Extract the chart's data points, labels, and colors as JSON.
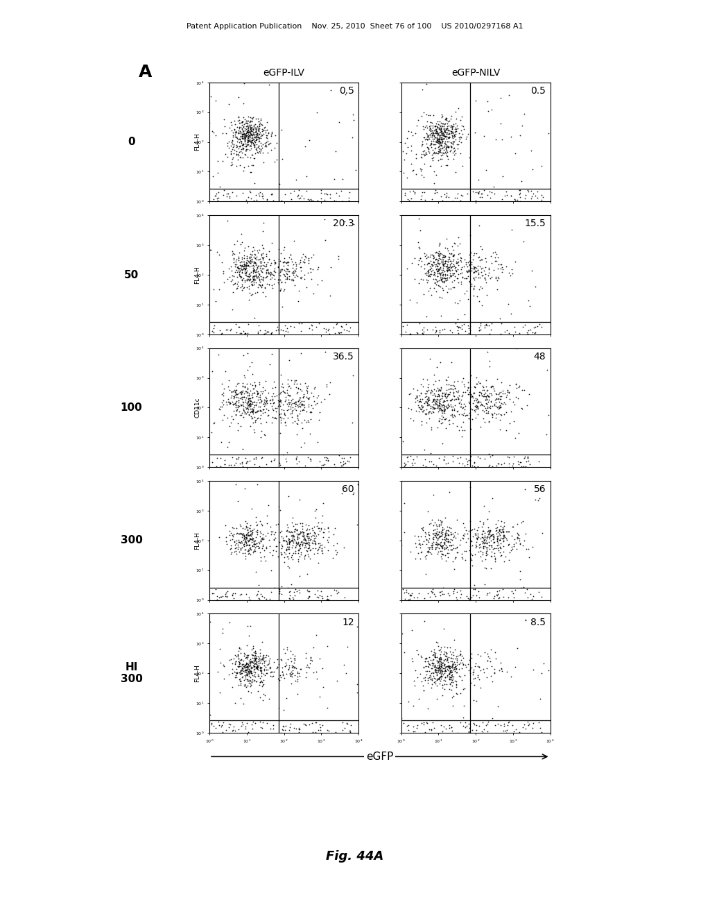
{
  "header_text": "Patent Application Publication    Nov. 25, 2010  Sheet 76 of 100    US 2010/0297168 A1",
  "panel_label": "A",
  "col_labels": [
    "eGFP-ILV",
    "eGFP-NILV"
  ],
  "row_labels": [
    "0",
    "50",
    "100",
    "300",
    "HI\n300"
  ],
  "values_left": [
    "0.5",
    "20.3",
    "36.5",
    "60",
    "12"
  ],
  "values_right": [
    "0.5",
    "15.5",
    "48",
    "56",
    "8.5"
  ],
  "y_axis_labels": [
    "FL4-H",
    "FL4-H",
    "CD11c",
    "FL4-H",
    "FL4-H"
  ],
  "x_axis_label": "eGFP",
  "figure_label": "Fig. 44A",
  "bg_color": "#ffffff",
  "dot_color": "#000000",
  "line_color": "#000000"
}
